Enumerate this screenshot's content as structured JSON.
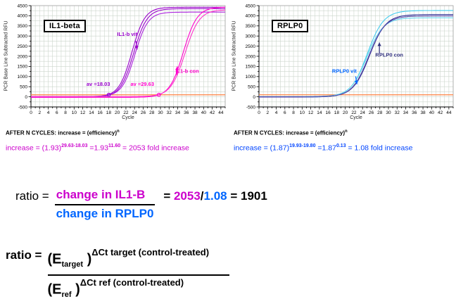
{
  "chart_data": [
    {
      "type": "line",
      "title": "IL1-beta",
      "xlabel": "Cycle",
      "ylabel": "PCR Base Line Subtracted RFU",
      "xlim": [
        0,
        45
      ],
      "ylim": [
        -500,
        4500
      ],
      "x_tick_step": 2,
      "x_minor_step": 1,
      "y_tick_step": 500,
      "y_minor_step": 250,
      "grid_on": true,
      "grid_color": "#ccd6cc",
      "threshold_rfu": 100,
      "threshold_color": "#ff8040",
      "series": [
        {
          "name": "IL1-b vit rep1",
          "color": "#9900cc",
          "baseline": 0,
          "plateau": 4420,
          "midpoint": 23.4,
          "slope": 1.5,
          "ct": 18.03
        },
        {
          "name": "IL1-b vit rep2",
          "color": "#9900cc",
          "baseline": -20,
          "plateau": 4350,
          "midpoint": 23.8,
          "slope": 1.55,
          "ct": 18.03
        },
        {
          "name": "IL1-b vit rep3",
          "color": "#aa22dd",
          "baseline": 15,
          "plateau": 4180,
          "midpoint": 24.1,
          "slope": 1.5,
          "ct": 18.03
        },
        {
          "name": "IL1-b con rep1",
          "color": "#ff00cc",
          "baseline": -25,
          "plateau": 4430,
          "midpoint": 35.3,
          "slope": 1.6,
          "ct": 29.63
        },
        {
          "name": "IL1-b con rep2",
          "color": "#ff33cc",
          "baseline": 10,
          "plateau": 4300,
          "midpoint": 35.7,
          "slope": 1.65,
          "ct": 29.63
        }
      ],
      "threshold_markers": [
        {
          "x": 18.03,
          "y": 100,
          "color": "#9900cc"
        },
        {
          "x": 29.63,
          "y": 100,
          "color": "#ff00cc"
        }
      ],
      "annotations": [
        {
          "text": "IL1-b vit",
          "color": "#9900cc",
          "x": 22.3,
          "y": 3000,
          "arrow": {
            "x1": 24.3,
            "y1": 2760,
            "x2": 24.6,
            "y2": 2330
          }
        },
        {
          "text": "IL1-b con",
          "color": "#ff00cc",
          "x": 36.2,
          "y": 1180,
          "arrow": {
            "x1": 33.8,
            "y1": 1060,
            "x2": 33.9,
            "y2": 1500
          }
        },
        {
          "text": "av =18.03",
          "color": "#9900cc",
          "x": 15.6,
          "y": 540
        },
        {
          "text": "av =29.63",
          "color": "#ff00cc",
          "x": 25.8,
          "y": 540
        }
      ]
    },
    {
      "type": "line",
      "title": "RPLP0",
      "xlabel": "Cycle",
      "ylabel": "PCR Base Line Subtracted RFU",
      "xlim": [
        0,
        45
      ],
      "ylim": [
        -500,
        4500
      ],
      "x_tick_step": 2,
      "x_minor_step": 1,
      "y_tick_step": 500,
      "y_minor_step": 250,
      "grid_on": true,
      "grid_color": "#ccd6cc",
      "threshold_rfu": 100,
      "threshold_color": "#ff8040",
      "series": [
        {
          "name": "RPLP0 vit rep1",
          "color": "#44ccee",
          "baseline": -15,
          "plateau": 4260,
          "midpoint": 25.1,
          "slope": 1.9,
          "ct": 19.8
        },
        {
          "name": "RPLP0 vit rep2",
          "color": "#66d6f0",
          "baseline": 10,
          "plateau": 3900,
          "midpoint": 25.0,
          "slope": 1.9,
          "ct": 19.8
        },
        {
          "name": "RPLP0 con rep1",
          "color": "#2e2e96",
          "baseline": 0,
          "plateau": 4060,
          "midpoint": 25.6,
          "slope": 1.9,
          "ct": 19.93
        },
        {
          "name": "RPLP0 con rep2",
          "color": "#5548a8",
          "baseline": -10,
          "plateau": 3990,
          "midpoint": 25.4,
          "slope": 1.9,
          "ct": 19.93
        }
      ],
      "threshold_markers": [],
      "annotations": [
        {
          "text": "RPLP0 vit",
          "color": "#0066ff",
          "x": 19.8,
          "y": 1180,
          "arrow": {
            "x1": 22.4,
            "y1": 1010,
            "x2": 22.7,
            "y2": 620
          }
        },
        {
          "text": "RPLP0 con",
          "color": "#333380",
          "x": 30.2,
          "y": 1980,
          "arrow": {
            "x1": 27.9,
            "y1": 2140,
            "x2": 27.9,
            "y2": 2680
          }
        }
      ]
    }
  ],
  "after_cycles": {
    "text": "AFTER N CYCLES: increase = (efficiency)",
    "exponent": "n"
  },
  "increase_left": {
    "color": "#cc00cc",
    "p1": "increase = (1.93)",
    "sup1": "29.63-18.03",
    "p2": " =1.93",
    "sup2": "11.60",
    "p3": " = 2053 fold increase"
  },
  "increase_right": {
    "color": "#0044ff",
    "p1": "increase = (1.87)",
    "sup1": "19.93-19.80",
    "p2": " =1.87",
    "sup2": "0.13",
    "p3": " = 1.08 fold increase"
  },
  "ratio_line": {
    "label": "ratio =",
    "numerator": "change in IL1-B",
    "denominator": "change in RPLP0",
    "eq": "= ",
    "num_value": "2053",
    "slash": "/",
    "den_value": "1.08",
    "result": " = 1901",
    "numerator_color": "#cc00cc",
    "denominator_color": "#0066ff"
  },
  "formula": {
    "label": "ratio =",
    "num_open": "(E",
    "num_sub": "target",
    "num_close": " )",
    "num_sup": "ΔCt target (control-treated)",
    "den_open": "(E",
    "den_sub": "ref",
    "den_close": " )",
    "den_sup": "ΔCt ref (control-treated)"
  }
}
